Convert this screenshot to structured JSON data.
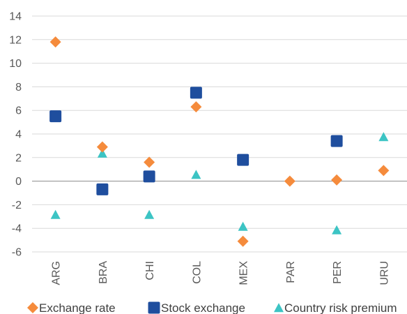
{
  "chart_data": {
    "type": "scatter",
    "title": "",
    "xlabel": "",
    "ylabel": "",
    "categories": [
      "ARG",
      "BRA",
      "CHI",
      "COL",
      "MEX",
      "PAR",
      "PER",
      "URU"
    ],
    "ylim": [
      -6,
      14
    ],
    "yticks": [
      -6,
      -4,
      -2,
      0,
      2,
      4,
      6,
      8,
      10,
      12,
      14
    ],
    "grid": true,
    "legend_position": "bottom",
    "series": [
      {
        "name": "Exchange rate",
        "marker": "diamond",
        "color": "#F58B3C",
        "values": [
          11.8,
          2.9,
          1.6,
          6.3,
          -5.1,
          0.0,
          0.1,
          0.9
        ]
      },
      {
        "name": "Stock exchange",
        "marker": "square",
        "color": "#1F4E9E",
        "values": [
          5.5,
          -0.7,
          0.4,
          7.5,
          1.8,
          null,
          3.4,
          null
        ]
      },
      {
        "name": "Country risk premium",
        "marker": "triangle",
        "color": "#3CC4C4",
        "values": [
          -2.9,
          2.3,
          -2.9,
          0.5,
          -3.9,
          null,
          -4.2,
          3.7
        ]
      }
    ]
  }
}
